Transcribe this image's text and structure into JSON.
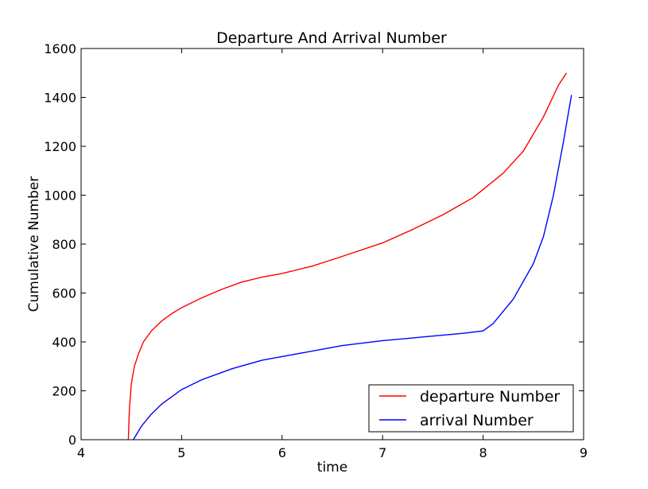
{
  "chart_data": {
    "type": "line",
    "title": "Departure And Arrival Number",
    "xlabel": "time",
    "ylabel": "Cumulative Number",
    "xlim": [
      4,
      9
    ],
    "ylim": [
      0,
      1600
    ],
    "xticks": [
      4,
      5,
      6,
      7,
      8,
      9
    ],
    "yticks": [
      0,
      200,
      400,
      600,
      800,
      1000,
      1200,
      1400,
      1600
    ],
    "grid": false,
    "legend_position": "lower-right",
    "series": [
      {
        "name": "departure Number",
        "color": "#ff0000",
        "x": [
          4.47,
          4.48,
          4.5,
          4.53,
          4.57,
          4.62,
          4.7,
          4.8,
          4.9,
          5.0,
          5.2,
          5.4,
          5.6,
          5.8,
          6.0,
          6.3,
          6.6,
          7.0,
          7.3,
          7.6,
          7.9,
          8.2,
          8.4,
          8.6,
          8.75,
          8.83
        ],
        "y": [
          0,
          120,
          230,
          300,
          350,
          400,
          445,
          485,
          515,
          540,
          580,
          615,
          645,
          665,
          680,
          710,
          750,
          805,
          860,
          920,
          990,
          1090,
          1180,
          1320,
          1450,
          1500
        ]
      },
      {
        "name": "arrival Number",
        "color": "#0000ff",
        "x": [
          4.52,
          4.6,
          4.7,
          4.8,
          5.0,
          5.2,
          5.5,
          5.8,
          6.2,
          6.6,
          7.0,
          7.4,
          7.8,
          8.0,
          8.1,
          8.3,
          8.5,
          8.6,
          8.7,
          8.75,
          8.8,
          8.85,
          8.88
        ],
        "y": [
          0,
          55,
          105,
          145,
          205,
          245,
          290,
          325,
          355,
          385,
          405,
          420,
          435,
          445,
          475,
          575,
          720,
          830,
          1000,
          1110,
          1220,
          1340,
          1410
        ]
      }
    ]
  }
}
